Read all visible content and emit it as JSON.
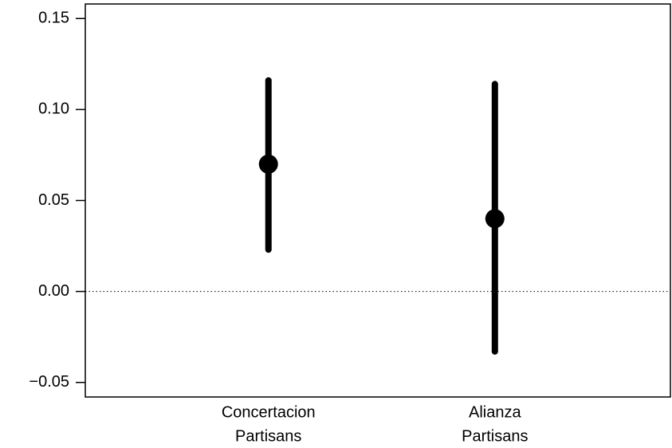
{
  "chart_data": {
    "type": "pointrange",
    "categories": [
      [
        "Concertacion",
        "Partisans"
      ],
      [
        "Alianza",
        "Partisans"
      ]
    ],
    "values": [
      0.07,
      0.04
    ],
    "lower": [
      0.023,
      -0.033
    ],
    "upper": [
      0.116,
      0.114
    ],
    "color": "#000000",
    "ylim": [
      -0.058,
      0.158
    ],
    "yticks": [
      {
        "value": -0.05,
        "label": "−0.05"
      },
      {
        "value": 0,
        "label": "0.00"
      },
      {
        "value": 0.05,
        "label": "0.05"
      },
      {
        "value": 0.1,
        "label": "0.10"
      },
      {
        "value": 0.15,
        "label": "0.15"
      }
    ],
    "hline": 0
  }
}
